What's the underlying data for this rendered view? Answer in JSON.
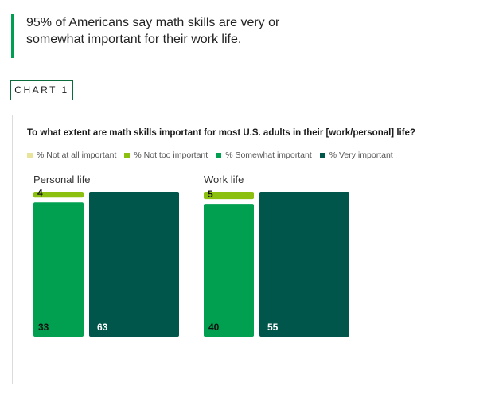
{
  "headline": {
    "line1": "95% of Americans say math skills are very or",
    "line2": "somewhat important for their work life."
  },
  "chart_tag": "CHART 1",
  "colors": {
    "not_at_all": "#e8e49a",
    "not_too": "#8cc010",
    "somewhat": "#00a050",
    "very": "#00564a",
    "accent": "#00a050"
  },
  "chart_data": {
    "type": "bar",
    "title": "To what extent are math skills important for most U.S. adults in their [work/personal] life?",
    "legend": [
      "% Not at all important",
      "% Not too important",
      "% Somewhat important",
      "% Very important"
    ],
    "legend_placement": "top",
    "panels": [
      {
        "title": "Personal life",
        "series": [
          {
            "name": "% Not at all important",
            "value": 0
          },
          {
            "name": "% Not too important",
            "value": 4
          },
          {
            "name": "% Somewhat important",
            "value": 33
          },
          {
            "name": "% Very important",
            "value": 63
          }
        ]
      },
      {
        "title": "Work life",
        "series": [
          {
            "name": "% Not at all important",
            "value": 0
          },
          {
            "name": "% Not too important",
            "value": 5
          },
          {
            "name": "% Somewhat important",
            "value": 40
          },
          {
            "name": "% Very important",
            "value": 55
          }
        ]
      }
    ]
  }
}
